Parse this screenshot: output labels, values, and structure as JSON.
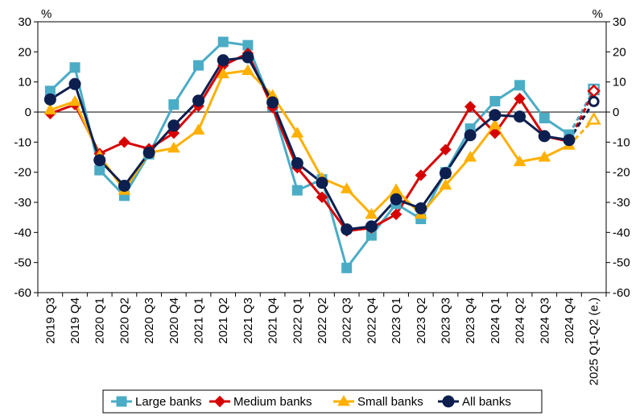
{
  "chart_data": {
    "type": "line",
    "unit_left": "%",
    "unit_right": "%",
    "ylim": [
      -60,
      30
    ],
    "yticks": [
      -60,
      -50,
      -40,
      -30,
      -20,
      -10,
      0,
      10,
      20,
      30
    ],
    "categories": [
      "2019 Q3",
      "2019 Q4",
      "2020 Q1",
      "2020 Q2",
      "2020 Q3",
      "2020 Q4",
      "2021 Q1",
      "2021 Q2",
      "2021 Q3",
      "2021 Q4",
      "2022 Q1",
      "2022 Q2",
      "2022 Q3",
      "2022 Q4",
      "2023 Q1",
      "2023 Q2",
      "2023 Q3",
      "2023 Q4",
      "2024 Q1",
      "2024 Q2",
      "2024 Q3",
      "2024 Q4",
      "2025 Q1-Q2 (e.)"
    ],
    "estimate_last_point": true,
    "grid": false,
    "legend_position": "bottom",
    "series": [
      {
        "name": "Large banks",
        "color": "#4BACC6",
        "marker": "square",
        "values": [
          7,
          14.8,
          -19.3,
          -27.8,
          -14,
          2.5,
          15.5,
          23.3,
          22.2,
          1.8,
          -26,
          -22.4,
          -51.8,
          -41,
          -30.5,
          -35.5,
          -20,
          -5.5,
          3.6,
          8.9,
          -2,
          -7.5,
          7.5
        ]
      },
      {
        "name": "Medium banks",
        "color": "#D70000",
        "marker": "diamond",
        "values": [
          -0.5,
          2.5,
          -13.8,
          -10,
          -12.2,
          -7,
          2,
          15.5,
          19.5,
          1.5,
          -18.5,
          -28.3,
          -39.5,
          -38.5,
          -34,
          -21,
          -12.5,
          1.8,
          -7,
          4.5,
          -8,
          -9.8,
          7
        ]
      },
      {
        "name": "Small banks",
        "color": "#FFB000",
        "marker": "triangle",
        "values": [
          0.7,
          3.5,
          -14.5,
          -26,
          -13.5,
          -12,
          -6,
          12.7,
          13.8,
          5.5,
          -7,
          -22,
          -25.5,
          -34,
          -25.8,
          -34,
          -24.3,
          -15,
          -4.3,
          -16.5,
          -15,
          -11,
          -2.5
        ]
      },
      {
        "name": "All banks",
        "color": "#0D1F4F",
        "marker": "circle",
        "values": [
          4.2,
          9.3,
          -16,
          -24.5,
          -13.5,
          -4.5,
          3.8,
          17.2,
          18.2,
          3.2,
          -17,
          -23.5,
          -39,
          -38,
          -29,
          -32,
          -20.3,
          -7.7,
          -1,
          -1.5,
          -8,
          -9.3,
          3.5
        ]
      }
    ]
  }
}
